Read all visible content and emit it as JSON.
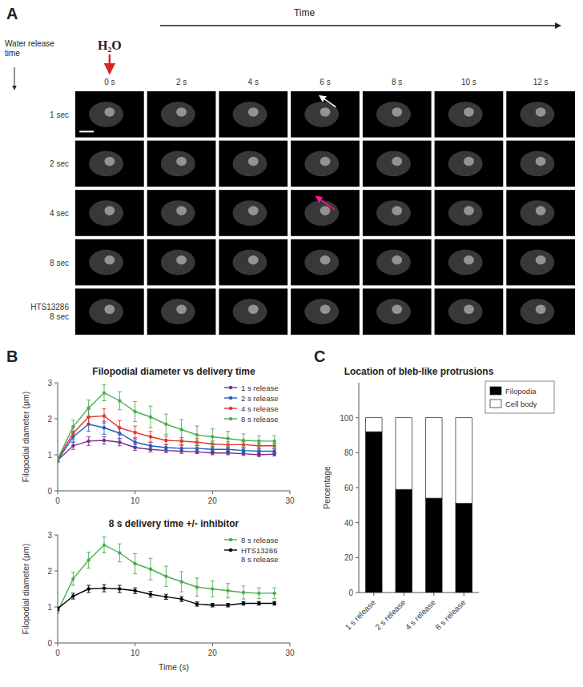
{
  "chart_data": [
    {
      "type": "image_grid",
      "annotations": [
        "A",
        "H₂O"
      ],
      "x_label": "Time",
      "y_label": "Water release\ntime",
      "categories": [
        "0 s",
        "2 s",
        "4 s",
        "6 s",
        "8 s",
        "10 s",
        "12 s"
      ],
      "rows": [
        "1 sec",
        "2 sec",
        "4 sec",
        "8 sec",
        "HTS13286\n8 sec"
      ]
    },
    {
      "type": "line",
      "title": "Filopodial diameter vs delivery time",
      "y_label": "Filopodial diameter (μm)",
      "annotations": [
        "B"
      ],
      "xlim": [
        0,
        30
      ],
      "xticks": [
        0,
        10,
        20,
        30
      ],
      "ylim": [
        0,
        3
      ],
      "yticks": [
        0,
        1,
        2,
        3
      ],
      "grid": false,
      "legend": "upper right",
      "marker": "circle",
      "series": [
        {
          "name": "1 s release",
          "color": "#7B2D8B",
          "x": [
            0,
            2,
            4,
            6,
            8,
            10,
            12,
            14,
            16,
            18,
            20,
            22,
            24,
            26,
            28
          ],
          "values": [
            0.85,
            1.25,
            1.38,
            1.4,
            1.35,
            1.2,
            1.15,
            1.12,
            1.1,
            1.08,
            1.05,
            1.05,
            1.03,
            1.0,
            1.02
          ],
          "errors": [
            0.05,
            0.1,
            0.12,
            0.1,
            0.1,
            0.08,
            0.07,
            0.06,
            0.06,
            0.05,
            0.05,
            0.05,
            0.05,
            0.05,
            0.05
          ]
        },
        {
          "name": "2 s release",
          "color": "#1E5FBE",
          "x": [
            0,
            2,
            4,
            6,
            8,
            10,
            12,
            14,
            16,
            18,
            20,
            22,
            24,
            26,
            28
          ],
          "values": [
            0.85,
            1.5,
            1.85,
            1.75,
            1.6,
            1.35,
            1.25,
            1.2,
            1.18,
            1.18,
            1.15,
            1.15,
            1.12,
            1.1,
            1.1
          ],
          "errors": [
            0.05,
            0.15,
            0.2,
            0.18,
            0.15,
            0.12,
            0.1,
            0.08,
            0.08,
            0.08,
            0.07,
            0.07,
            0.06,
            0.06,
            0.06
          ]
        },
        {
          "name": "4 s release",
          "color": "#E8312A",
          "x": [
            0,
            2,
            4,
            6,
            8,
            10,
            12,
            14,
            16,
            18,
            20,
            22,
            24,
            26,
            28
          ],
          "values": [
            0.88,
            1.6,
            2.05,
            2.08,
            1.75,
            1.62,
            1.5,
            1.4,
            1.38,
            1.35,
            1.3,
            1.28,
            1.28,
            1.25,
            1.25
          ],
          "errors": [
            0.05,
            0.18,
            0.22,
            0.2,
            0.2,
            0.18,
            0.15,
            0.12,
            0.1,
            0.1,
            0.08,
            0.08,
            0.08,
            0.07,
            0.07
          ]
        },
        {
          "name": "8 s release",
          "color": "#4CAF50",
          "x": [
            0,
            2,
            4,
            6,
            8,
            10,
            12,
            14,
            16,
            18,
            20,
            22,
            24,
            26,
            28
          ],
          "values": [
            0.88,
            1.78,
            2.3,
            2.72,
            2.5,
            2.2,
            2.05,
            1.85,
            1.7,
            1.55,
            1.5,
            1.45,
            1.4,
            1.38,
            1.38
          ],
          "errors": [
            0.06,
            0.18,
            0.22,
            0.22,
            0.25,
            0.28,
            0.3,
            0.28,
            0.28,
            0.25,
            0.22,
            0.2,
            0.18,
            0.15,
            0.15
          ]
        }
      ]
    },
    {
      "type": "line",
      "title": "8 s delivery time +/- inhibitor",
      "y_label": "Filopodial diameter (μm)",
      "x_label": "Time (s)",
      "xlim": [
        0,
        30
      ],
      "xticks": [
        0,
        10,
        20,
        30
      ],
      "ylim": [
        0,
        3
      ],
      "yticks": [
        0,
        1,
        2,
        3
      ],
      "grid": false,
      "legend": "upper right",
      "marker": "circle",
      "series": [
        {
          "name": "8 s release",
          "color": "#4CAF50",
          "x": [
            0,
            2,
            4,
            6,
            8,
            10,
            12,
            14,
            16,
            18,
            20,
            22,
            24,
            26,
            28
          ],
          "values": [
            0.88,
            1.78,
            2.3,
            2.72,
            2.5,
            2.2,
            2.05,
            1.85,
            1.7,
            1.55,
            1.5,
            1.45,
            1.4,
            1.38,
            1.38
          ],
          "errors": [
            0.06,
            0.18,
            0.22,
            0.22,
            0.25,
            0.28,
            0.3,
            0.28,
            0.28,
            0.25,
            0.22,
            0.2,
            0.18,
            0.15,
            0.15
          ]
        },
        {
          "name": "HTS13286\n8 s release",
          "color": "#000000",
          "x": [
            0,
            2,
            4,
            6,
            8,
            10,
            12,
            14,
            16,
            18,
            20,
            22,
            24,
            26,
            28
          ],
          "values": [
            0.95,
            1.3,
            1.5,
            1.52,
            1.5,
            1.45,
            1.35,
            1.28,
            1.22,
            1.08,
            1.05,
            1.05,
            1.1,
            1.1,
            1.1
          ],
          "errors": [
            0.05,
            0.08,
            0.1,
            0.1,
            0.1,
            0.08,
            0.08,
            0.07,
            0.07,
            0.06,
            0.05,
            0.05,
            0.05,
            0.05,
            0.05
          ]
        }
      ]
    },
    {
      "type": "bar",
      "title": "Location of bleb-like protrusions",
      "y_label": "Percentage",
      "annotations": [
        "C"
      ],
      "stacked": true,
      "grid": false,
      "legend": "right",
      "categories": [
        "1 s release",
        "2 s release",
        "4 s release",
        "8 s release"
      ],
      "ylim": [
        0,
        120
      ],
      "yticks": [
        0,
        20,
        40,
        60,
        80,
        100
      ],
      "series": [
        {
          "name": "Filopodia",
          "color": "#000000",
          "values": [
            92,
            59,
            54,
            51
          ]
        },
        {
          "name": "Cell body",
          "color": "#FFFFFF",
          "values": [
            8,
            41,
            46,
            49
          ]
        }
      ]
    }
  ]
}
